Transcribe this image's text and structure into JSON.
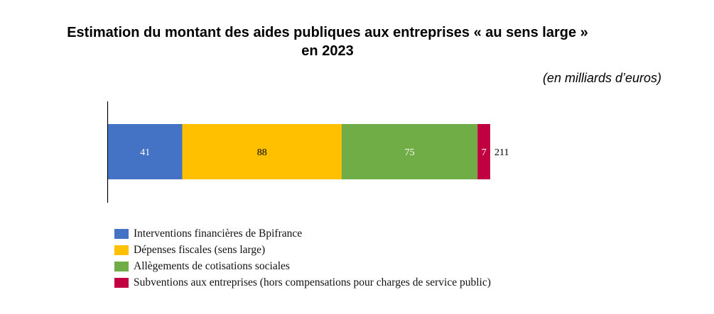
{
  "title_line1": "Estimation du montant des aides publiques aux entreprises « au sens large »",
  "title_line2": "en 2023",
  "unit": "(en milliards d’euros)",
  "chart_data": {
    "type": "bar",
    "orientation": "horizontal",
    "stacked": true,
    "categories": [
      ""
    ],
    "series": [
      {
        "name": "Interventions financières de Bpifrance",
        "values": [
          41
        ],
        "color": "#4472C4",
        "label_color": "#ffffff"
      },
      {
        "name": "Dépenses fiscales (sens large)",
        "values": [
          88
        ],
        "color": "#FFC000",
        "label_color": "#000000"
      },
      {
        "name": "Allègements de cotisations sociales",
        "values": [
          75
        ],
        "color": "#70AD47",
        "label_color": "#ffffff"
      },
      {
        "name": "Subventions aux entreprises (hors compensations pour charges de service public)",
        "values": [
          7
        ],
        "color": "#C00040",
        "label_color": "#ffffff"
      }
    ],
    "total": 211,
    "total_label": "211",
    "xlim": [
      0,
      211
    ],
    "legend_position": "bottom-left"
  }
}
